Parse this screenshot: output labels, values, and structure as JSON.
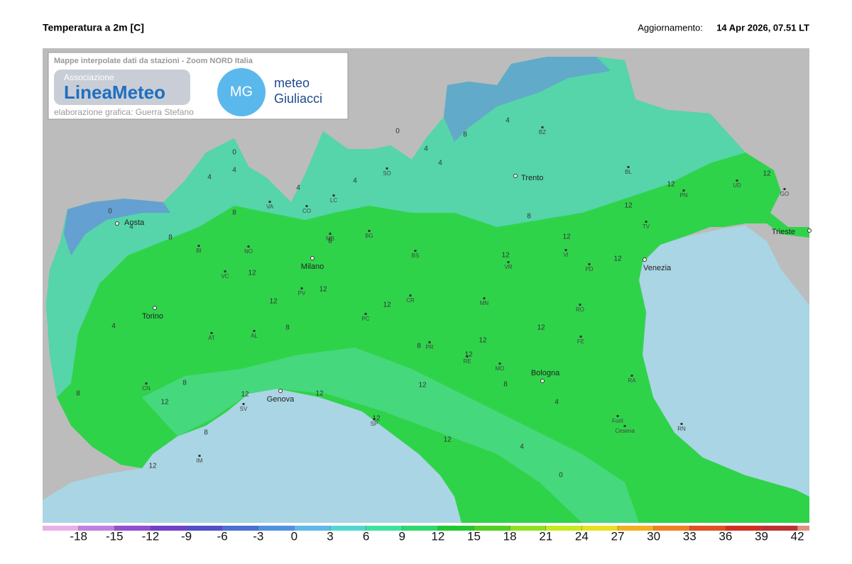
{
  "header": {
    "title": "Temperatura a 2m [C]",
    "update_label": "Aggiornamento:",
    "update_value": "14 Apr 2026, 07.51 LT"
  },
  "overlay": {
    "caption": "Mappe interpolate dati da stazioni - Zoom NORD Italia",
    "logo_small": "Associazione",
    "logo_main": "LineaMeteo",
    "credit": "elaborazione grafica: Guerra Stefano",
    "mg_badge": "MG",
    "mg_line1": "meteo",
    "mg_line2": "Giuliacci"
  },
  "cities": [
    "Aosta",
    "Torino",
    "Milano",
    "Trento",
    "Venezia",
    "Trieste",
    "Genova",
    "Bologna"
  ],
  "provinces": [
    "VA",
    "CO",
    "LC",
    "SO",
    "BZ",
    "BL",
    "PN",
    "UD",
    "GO",
    "TV",
    "BI",
    "NO",
    "MB",
    "BG",
    "BS",
    "VR",
    "VI",
    "PD",
    "VC",
    "PV",
    "CR",
    "MN",
    "RO",
    "AT",
    "AL",
    "PC",
    "PR",
    "RE",
    "MO",
    "FE",
    "CN",
    "SV",
    "IM",
    "SP",
    "RA",
    "Forlì",
    "Cesena",
    "RN"
  ],
  "contour_labels": [
    "0",
    "4",
    "8",
    "4",
    "0",
    "4",
    "8",
    "12",
    "4",
    "8",
    "4",
    "0",
    "4",
    "4",
    "8",
    "4",
    "8",
    "12",
    "12",
    "12",
    "12",
    "12",
    "12",
    "12",
    "12",
    "8",
    "12",
    "8",
    "12",
    "12",
    "12",
    "12",
    "8",
    "4",
    "8",
    "12",
    "12",
    "8",
    "12",
    "12",
    "12",
    "12",
    "4",
    "0",
    "4",
    "8"
  ],
  "colorbar": {
    "lim": [
      -21,
      43
    ],
    "step": 3,
    "ticks": [
      -18,
      -15,
      -12,
      -9,
      -6,
      -3,
      0,
      3,
      6,
      9,
      12,
      15,
      18,
      21,
      24,
      27,
      30,
      33,
      36,
      39,
      42
    ],
    "colors": [
      "#e8b0e8",
      "#c080e0",
      "#9050d0",
      "#7040c8",
      "#5050c8",
      "#4a70d0",
      "#5090e0",
      "#60b8e8",
      "#50d8d0",
      "#40e0a0",
      "#30d870",
      "#20c830",
      "#50d020",
      "#90e020",
      "#c8e820",
      "#e8e020",
      "#f0b020",
      "#f08020",
      "#e05020",
      "#d03020",
      "#c03030",
      "#e09080"
    ]
  }
}
